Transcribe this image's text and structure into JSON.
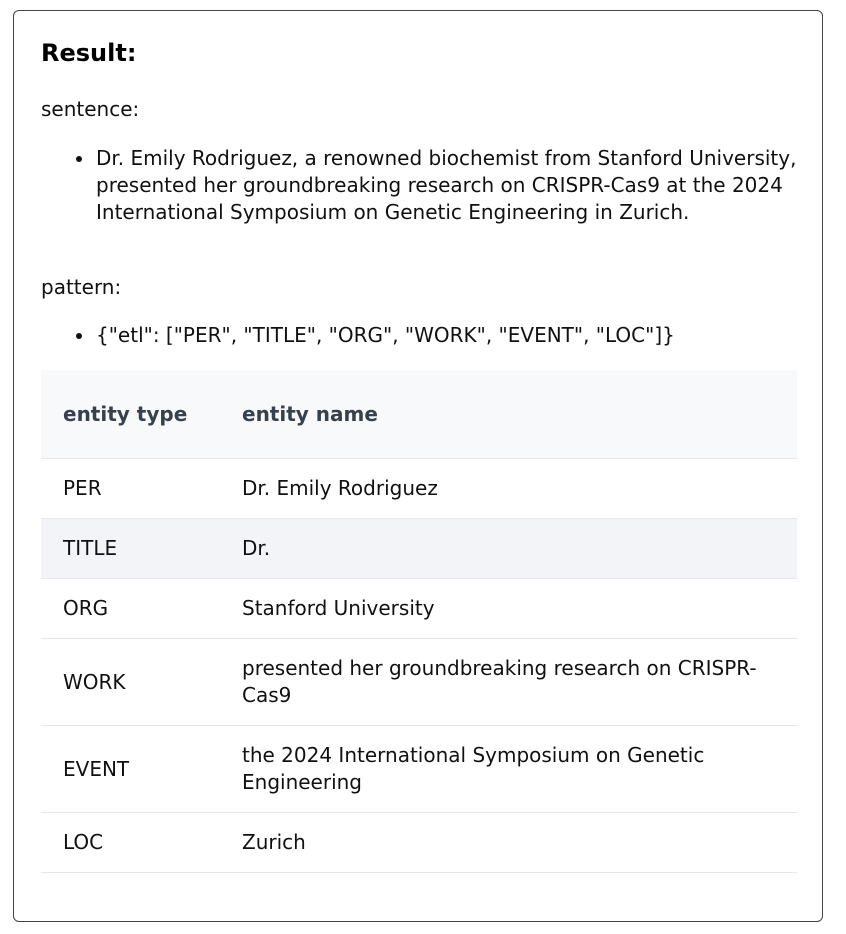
{
  "result": {
    "heading": "Result:"
  },
  "sentence": {
    "label": "sentence:",
    "items": [
      "Dr. Emily Rodriguez, a renowned biochemist from Stanford University, presented her groundbreaking research on CRISPR-Cas9 at the 2024 International Symposium on Genetic Engineering in Zurich."
    ]
  },
  "pattern": {
    "label": "pattern:",
    "items": [
      "{\"etl\": [\"PER\", \"TITLE\", \"ORG\", \"WORK\", \"EVENT\", \"LOC\"]}"
    ]
  },
  "table": {
    "headers": {
      "entity_type": "entity type",
      "entity_name": "entity name"
    },
    "rows": [
      {
        "type": "PER",
        "name": "Dr. Emily Rodriguez"
      },
      {
        "type": "TITLE",
        "name": "Dr."
      },
      {
        "type": "ORG",
        "name": "Stanford University"
      },
      {
        "type": "WORK",
        "name": "presented her groundbreaking research on CRISPR-Cas9"
      },
      {
        "type": "EVENT",
        "name": "the 2024 International Symposium on Genetic Engineering"
      },
      {
        "type": "LOC",
        "name": "Zurich"
      }
    ]
  }
}
